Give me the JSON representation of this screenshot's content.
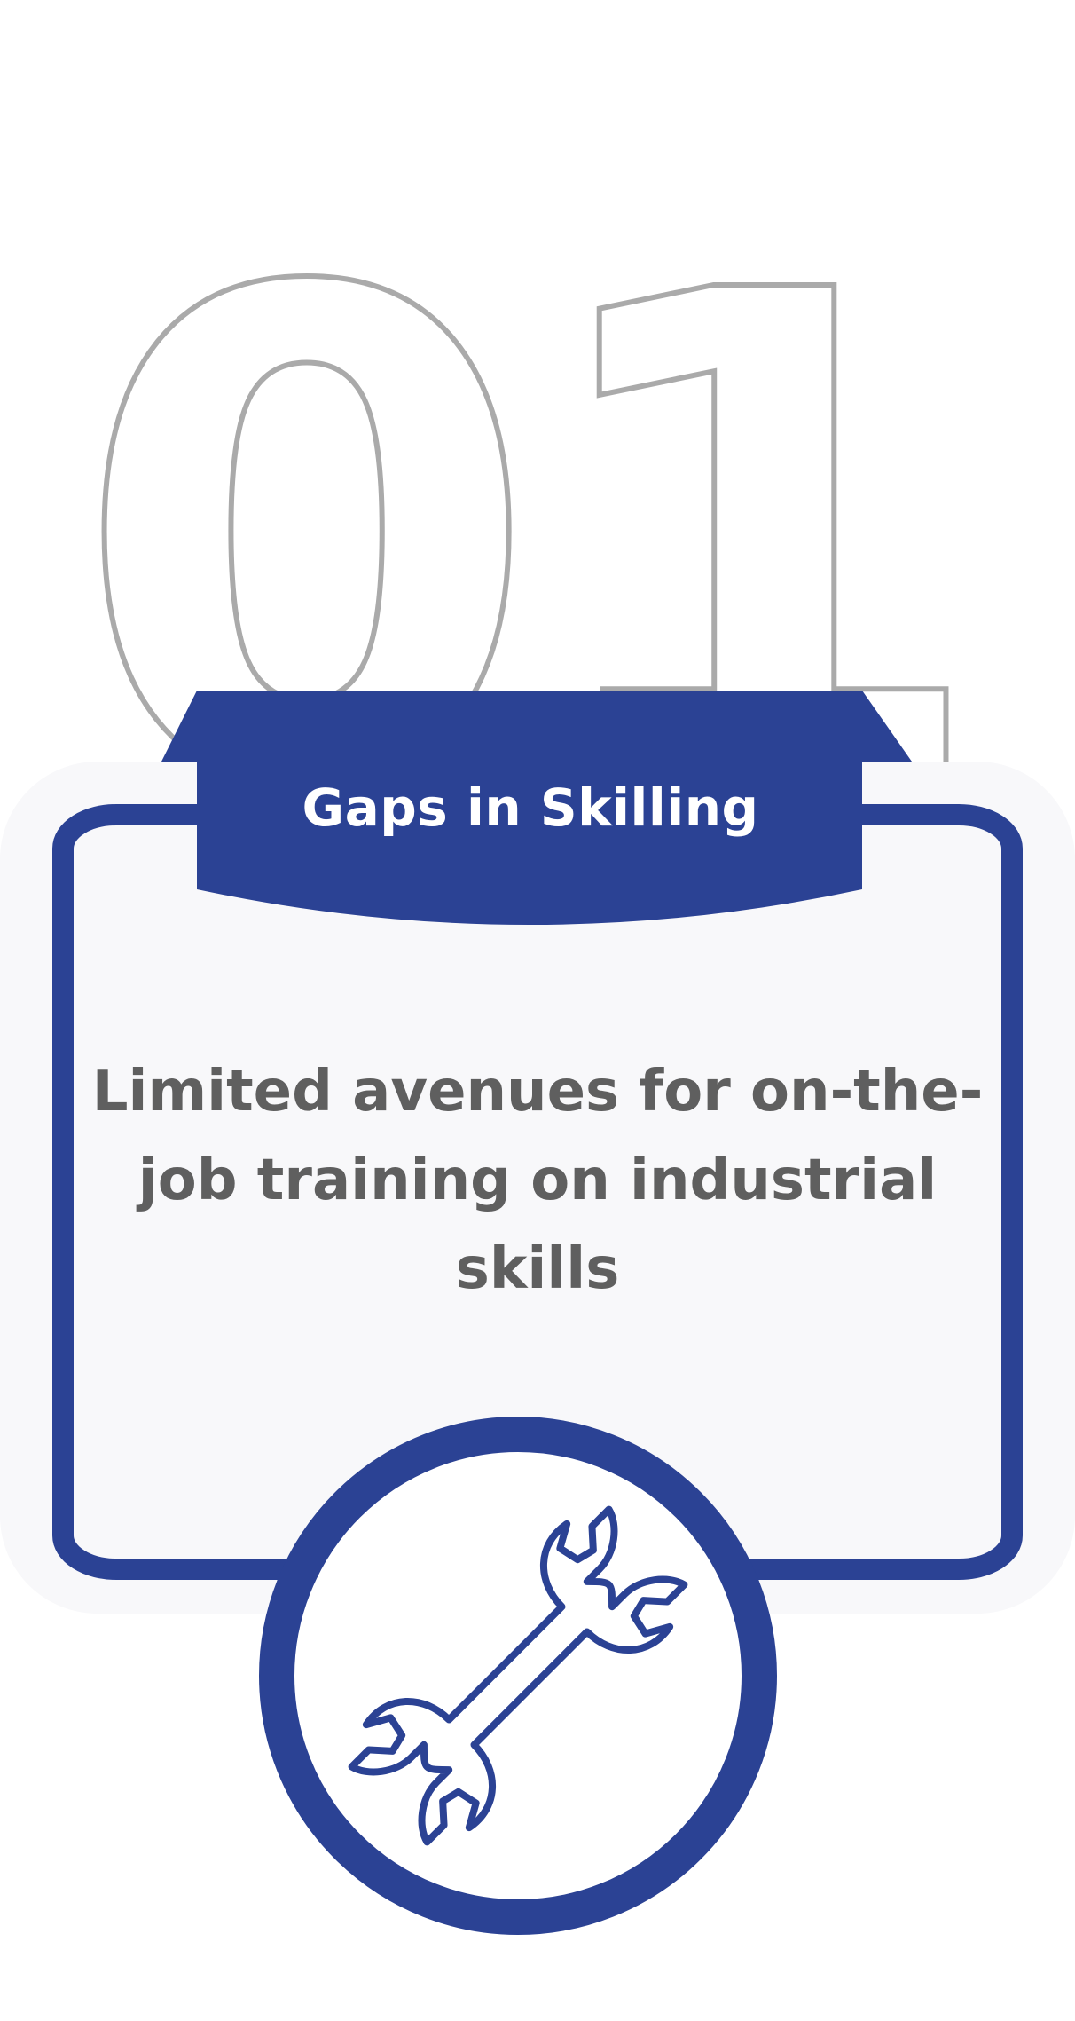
{
  "step_number": "01",
  "banner_title": "Gaps in Skilling",
  "description": "Limited avenues for on-the-job training on industrial skills",
  "icon": "wrench-icon",
  "colors": {
    "primary": "#2b4294",
    "panel_background": "#f8f8fa",
    "number_outline": "#aaaaaa",
    "text_dark": "#5f5f5f",
    "text_light": "#ffffff"
  }
}
